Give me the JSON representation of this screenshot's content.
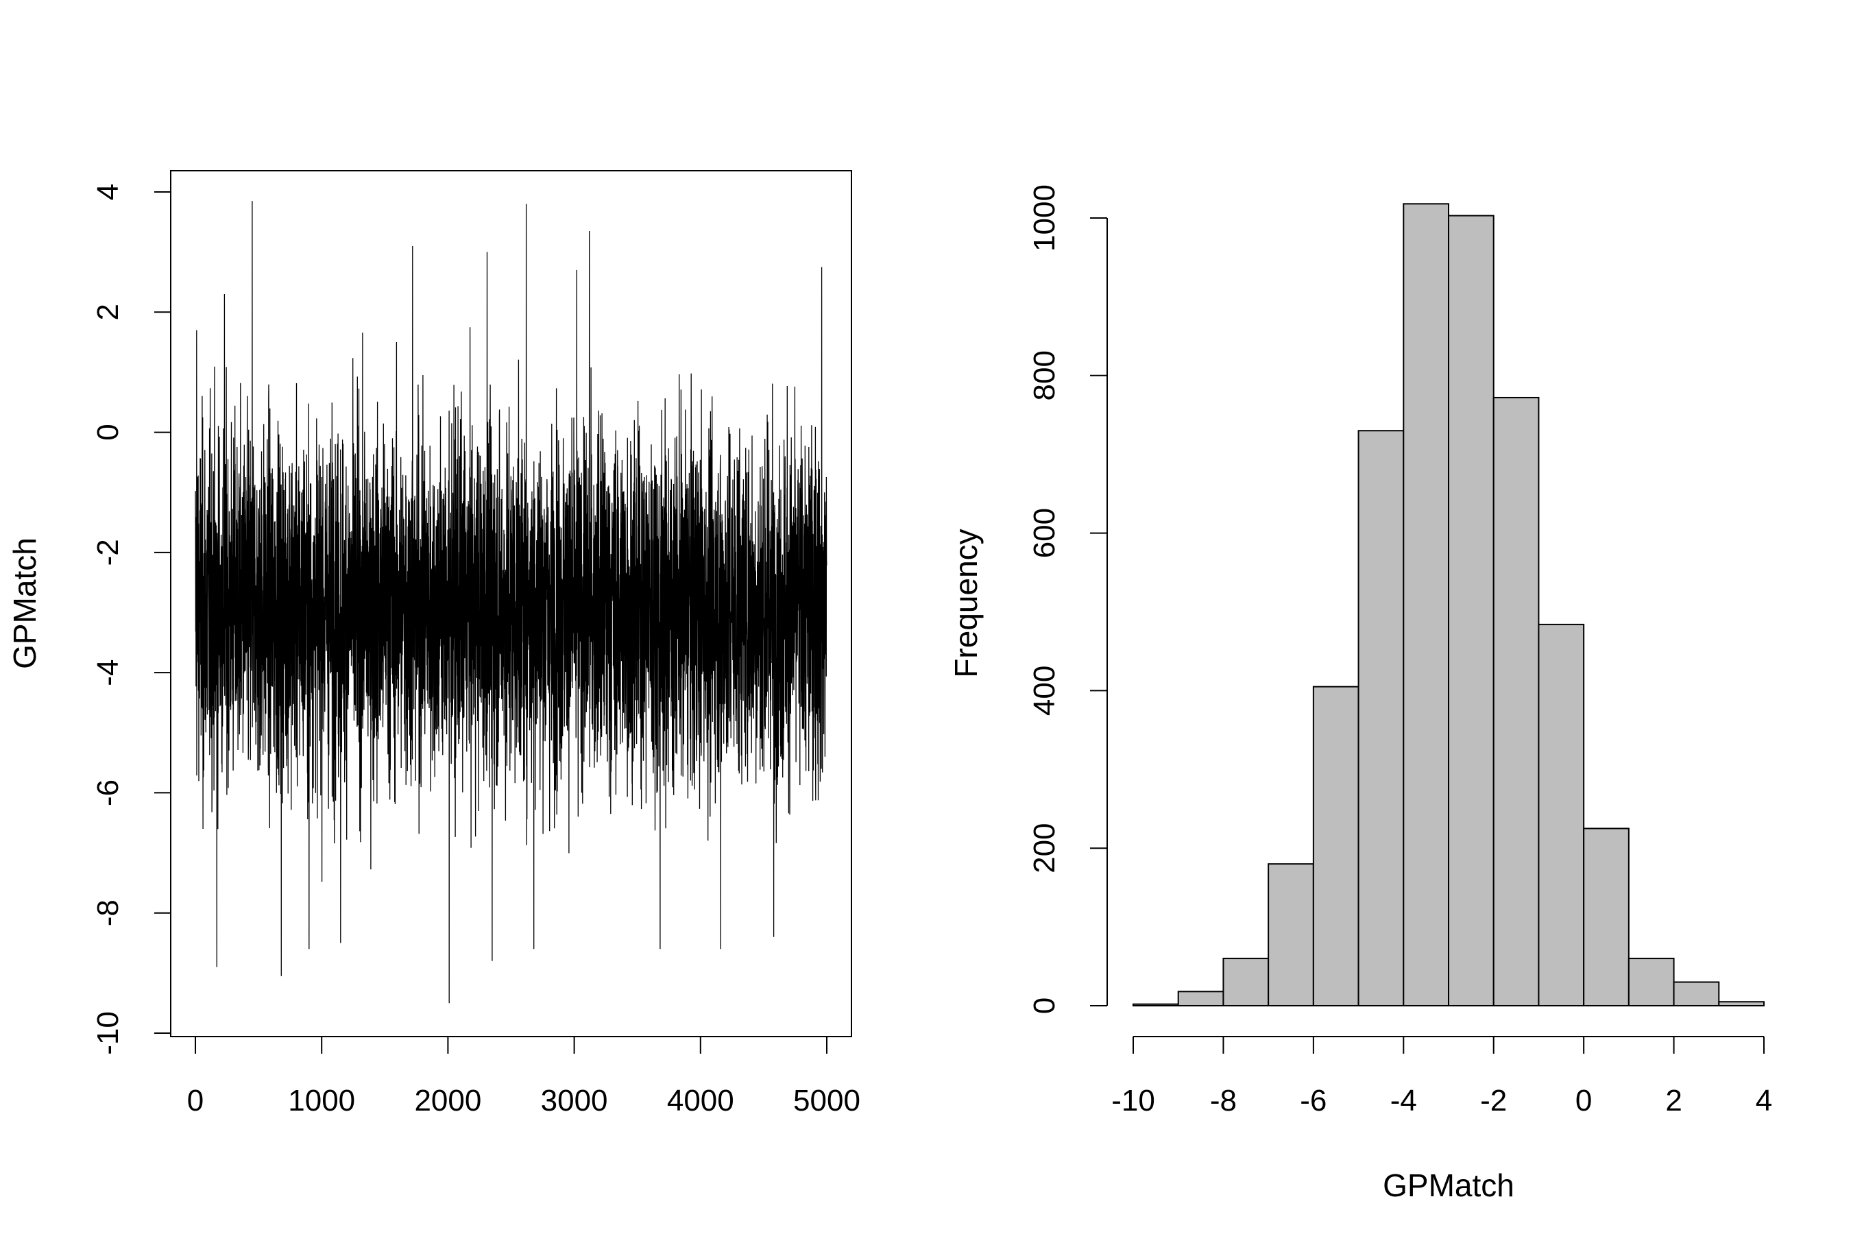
{
  "chart_data": [
    {
      "type": "line",
      "xlabel": "",
      "ylabel": "GPMatch",
      "xlim": [
        0,
        5000
      ],
      "ylim": [
        -10,
        4
      ],
      "xticks": [
        "0",
        "1000",
        "2000",
        "3000",
        "4000",
        "5000"
      ],
      "yticks": [
        "-10",
        "-8",
        "-6",
        "-4",
        "-2",
        "0",
        "2",
        "4"
      ],
      "n_points": 5000,
      "center": -2.9,
      "min": -9.5,
      "max": 3.85,
      "grid": false,
      "spikes": [
        {
          "x": 10,
          "y": 1.7
        },
        {
          "x": 60,
          "y": -6.6
        },
        {
          "x": 170,
          "y": -8.9
        },
        {
          "x": 230,
          "y": 2.3
        },
        {
          "x": 450,
          "y": 3.85
        },
        {
          "x": 680,
          "y": -9.05
        },
        {
          "x": 900,
          "y": -8.6
        },
        {
          "x": 1150,
          "y": -8.5
        },
        {
          "x": 1720,
          "y": 3.1
        },
        {
          "x": 2010,
          "y": -9.5
        },
        {
          "x": 2310,
          "y": 3.0
        },
        {
          "x": 2350,
          "y": -8.8
        },
        {
          "x": 2620,
          "y": 3.8
        },
        {
          "x": 2680,
          "y": -8.6
        },
        {
          "x": 3020,
          "y": 2.7
        },
        {
          "x": 3120,
          "y": 3.35
        },
        {
          "x": 3680,
          "y": -8.6
        },
        {
          "x": 4160,
          "y": -8.6
        },
        {
          "x": 4580,
          "y": -8.4
        },
        {
          "x": 4960,
          "y": 2.75
        }
      ]
    },
    {
      "type": "bar",
      "xlabel": "GPMatch",
      "ylabel": "Frequency",
      "xlim": [
        -10,
        4
      ],
      "ylim": [
        0,
        1000
      ],
      "xticks": [
        "-10",
        "-8",
        "-6",
        "-4",
        "-2",
        "0",
        "2",
        "4"
      ],
      "yticks": [
        "0",
        "200",
        "400",
        "600",
        "800",
        "1000"
      ],
      "bin_edges": [
        -10,
        -9,
        -8,
        -7,
        -6,
        -5,
        -4,
        -3,
        -2,
        -1,
        0,
        1,
        2,
        3,
        4
      ],
      "values": [
        2,
        18,
        60,
        180,
        405,
        730,
        1018,
        1003,
        772,
        484,
        225,
        60,
        30,
        5
      ],
      "bar_color": "#bebebe",
      "grid": false
    }
  ]
}
